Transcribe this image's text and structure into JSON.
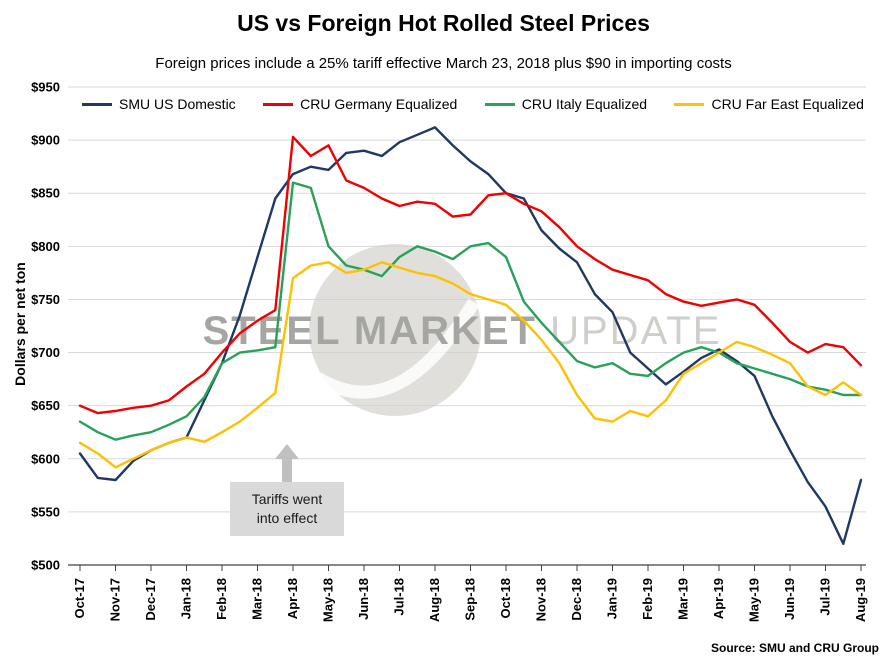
{
  "source": "Source: SMU and CRU Group",
  "watermark": {
    "part1": "STEEL",
    "part2": "MARKET",
    "part3": "UPDATE"
  },
  "chart_data": {
    "type": "line",
    "title": "US vs Foreign Hot Rolled Steel Prices",
    "subtitle": "Foreign prices include a 25% tariff effective March 23, 2018 plus $90 in importing costs",
    "ylabel": "Dollars per net ton",
    "xlabel": "",
    "ylim": [
      500,
      950
    ],
    "ytick_step": 50,
    "ytick_prefix": "$",
    "grid": true,
    "legend_position": "top",
    "categories": [
      "Oct-17",
      "Nov-17",
      "Dec-17",
      "Jan-18",
      "Feb-18",
      "Mar-18",
      "Apr-18",
      "May-18",
      "Jun-18",
      "Jul-18",
      "Aug-18",
      "Sep-18",
      "Oct-18",
      "Nov-18",
      "Dec-18",
      "Jan-19",
      "Feb-19",
      "Mar-19",
      "Apr-19",
      "May-19",
      "Jun-19",
      "Jul-19",
      "Aug-19"
    ],
    "x_points_per_month": 2,
    "series": [
      {
        "name": "SMU US Domestic",
        "color": "#1f3864",
        "values": [
          605,
          582,
          580,
          598,
          608,
          615,
          620,
          655,
          690,
          735,
          790,
          845,
          868,
          875,
          872,
          888,
          890,
          885,
          898,
          905,
          912,
          895,
          880,
          868,
          850,
          845,
          815,
          798,
          785,
          755,
          738,
          700,
          685,
          670,
          682,
          695,
          703,
          692,
          678,
          640,
          608,
          578,
          555,
          520,
          580
        ]
      },
      {
        "name": "CRU Germany Equalized",
        "color": "#f00000",
        "values": [
          650,
          643,
          645,
          648,
          650,
          655,
          668,
          680,
          700,
          718,
          730,
          740,
          903,
          885,
          895,
          862,
          855,
          845,
          838,
          842,
          840,
          828,
          830,
          848,
          850,
          840,
          833,
          818,
          800,
          788,
          778,
          773,
          768,
          755,
          748,
          744,
          747,
          750,
          745,
          728,
          710,
          700,
          708,
          705,
          688
        ]
      },
      {
        "name": "CRU Italy Equalized",
        "color": "#2aa158",
        "values": [
          635,
          625,
          618,
          622,
          625,
          632,
          640,
          658,
          690,
          700,
          702,
          705,
          860,
          855,
          800,
          782,
          778,
          772,
          790,
          800,
          795,
          788,
          800,
          803,
          790,
          748,
          728,
          710,
          692,
          686,
          690,
          680,
          678,
          690,
          700,
          705,
          700,
          690,
          685,
          680,
          675,
          668,
          665,
          660,
          660
        ]
      },
      {
        "name": "CRU Far East Equalized",
        "color": "#ffc000",
        "values": [
          615,
          605,
          592,
          600,
          608,
          615,
          620,
          616,
          625,
          635,
          648,
          662,
          770,
          782,
          785,
          775,
          778,
          785,
          780,
          775,
          772,
          765,
          755,
          750,
          745,
          730,
          712,
          690,
          660,
          638,
          635,
          645,
          640,
          655,
          680,
          690,
          700,
          710,
          705,
          698,
          690,
          668,
          660,
          672,
          660
        ]
      }
    ],
    "annotation": {
      "lines": [
        "Tariffs went",
        "into effect"
      ],
      "anchor_month": "Mar-18"
    }
  }
}
